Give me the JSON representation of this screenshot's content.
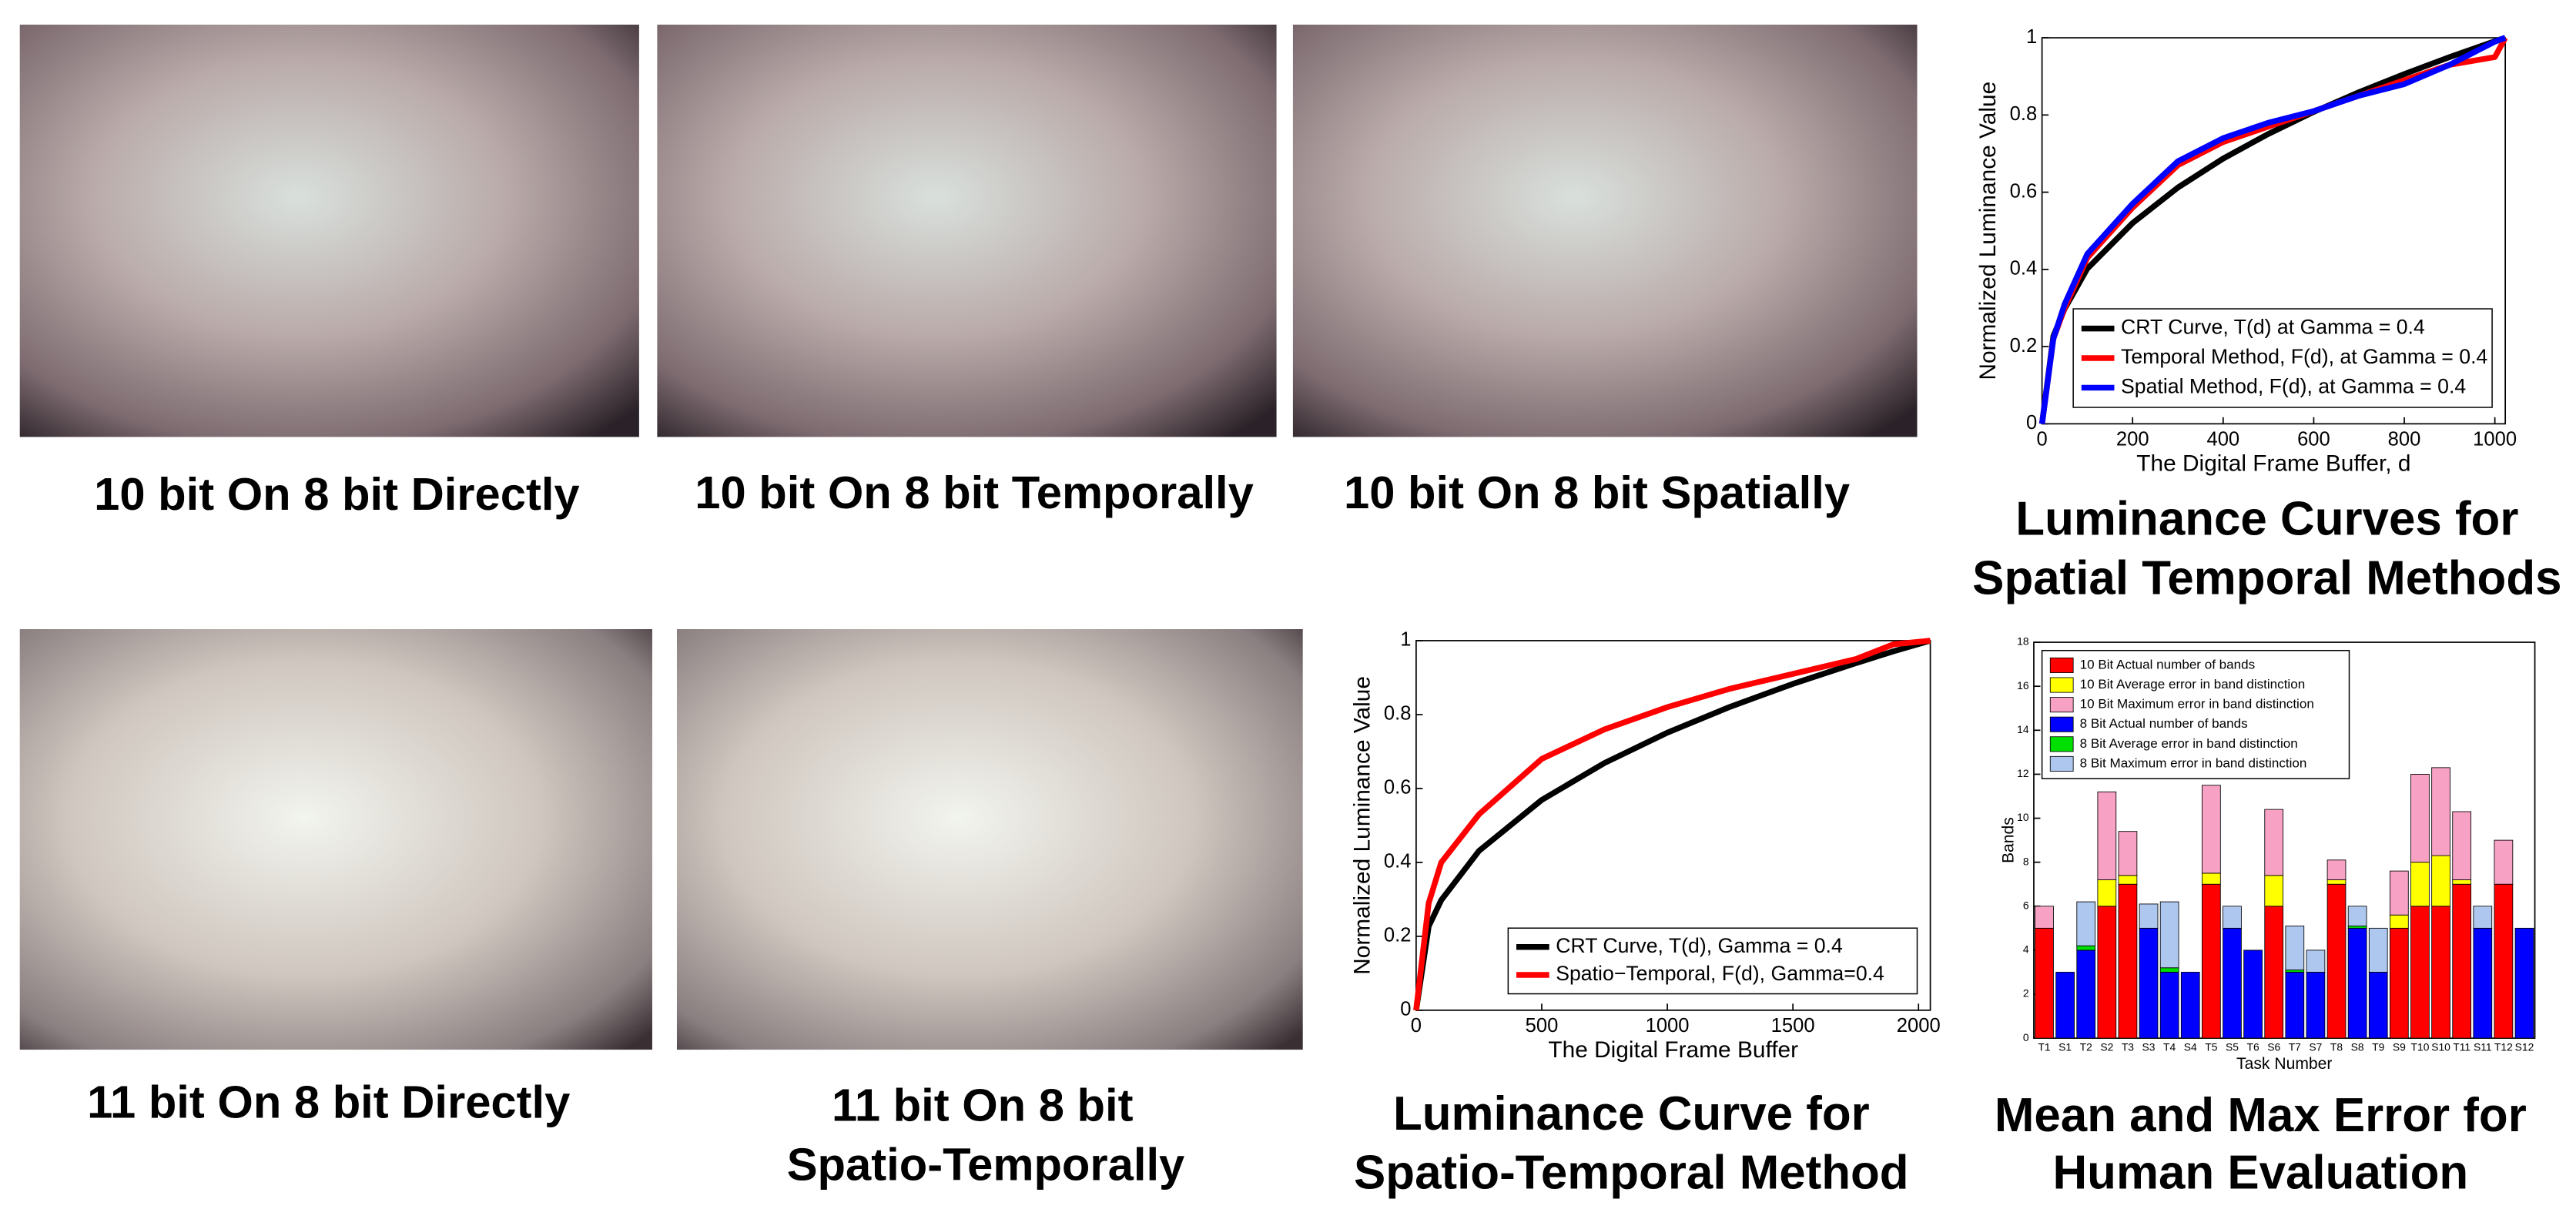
{
  "photos": [
    {
      "caption": "10 bit On 8 bit Directly"
    },
    {
      "caption": "10 bit On 8 bit Temporally"
    },
    {
      "caption": "10 bit On 8 bit Spatially"
    },
    {
      "caption": "11 bit On 8 bit Directly"
    },
    {
      "caption": [
        "11 bit On 8 bit",
        "Spatio-Temporally"
      ]
    }
  ],
  "chart_data": [
    {
      "type": "line",
      "title": [
        "Luminance Curves for",
        "Spatial Temporal Methods"
      ],
      "xlabel": "The Digital Frame Buffer, d",
      "ylabel": "Normalized Luminance Value",
      "x": [
        0,
        25,
        50,
        100,
        200,
        300,
        400,
        500,
        600,
        700,
        800,
        900,
        1000,
        1023
      ],
      "series": [
        {
          "name": "CRT Curve, T(d) at Gamma = 0.4",
          "color": "#000000",
          "values": [
            0,
            0.227,
            0.298,
            0.402,
            0.52,
            0.612,
            0.687,
            0.751,
            0.808,
            0.859,
            0.906,
            0.95,
            0.991,
            1
          ]
        },
        {
          "name": "Temporal Method, F(d), at Gamma = 0.4",
          "color": "#ff0000",
          "values": [
            0,
            0.22,
            0.3,
            0.43,
            0.56,
            0.67,
            0.73,
            0.77,
            0.81,
            0.85,
            0.89,
            0.93,
            0.95,
            1
          ]
        },
        {
          "name": "Spatial Method, F(d), at Gamma = 0.4",
          "color": "#0000ff",
          "values": [
            0,
            0.22,
            0.31,
            0.44,
            0.57,
            0.68,
            0.74,
            0.78,
            0.81,
            0.85,
            0.88,
            0.93,
            0.99,
            1
          ]
        }
      ],
      "xlim": [
        0,
        1023
      ],
      "ylim": [
        0,
        1
      ],
      "xticks": [
        0,
        200,
        400,
        600,
        800,
        1000
      ],
      "yticks": [
        0,
        0.2,
        0.4,
        0.6,
        0.8,
        1
      ],
      "legend": "lower right"
    },
    {
      "type": "line",
      "title": [
        "Luminance Curve for",
        "Spatio-Temporal Method"
      ],
      "xlabel": "The Digital Frame Buffer",
      "ylabel": "Normalized Luminance Value",
      "x": [
        0,
        50,
        100,
        250,
        500,
        750,
        1000,
        1250,
        1500,
        1750,
        1900,
        2047
      ],
      "series": [
        {
          "name": "CRT Curve, T(d), Gamma = 0.4",
          "color": "#000000",
          "values": [
            0,
            0.227,
            0.298,
            0.431,
            0.569,
            0.669,
            0.751,
            0.821,
            0.883,
            0.939,
            0.971,
            1
          ]
        },
        {
          "name": "Spatio−Temporal, F(d), Gamma=0.4",
          "color": "#ff0000",
          "values": [
            0,
            0.29,
            0.4,
            0.53,
            0.68,
            0.76,
            0.82,
            0.87,
            0.91,
            0.95,
            0.99,
            1
          ]
        }
      ],
      "xlim": [
        0,
        2047
      ],
      "ylim": [
        0,
        1
      ],
      "xticks": [
        0,
        500,
        1000,
        1500,
        2000
      ],
      "yticks": [
        0,
        0.2,
        0.4,
        0.6,
        0.8,
        1
      ],
      "legend": "lower right"
    },
    {
      "type": "bar",
      "stacked": true,
      "title": [
        "Mean and Max Error for",
        "Human Evaluation"
      ],
      "xlabel": "Task Number",
      "ylabel": "Bands",
      "categories": [
        "T1",
        "S1",
        "T2",
        "S2",
        "T3",
        "S3",
        "T4",
        "S4",
        "T5",
        "S5",
        "T6",
        "S6",
        "T7",
        "S7",
        "T8",
        "S8",
        "T9",
        "S9",
        "T10",
        "S10",
        "T11",
        "S11",
        "T12",
        "S12"
      ],
      "series": [
        {
          "name": "10 Bit Actual number of bands",
          "color": "#ff0000",
          "values": [
            5,
            0,
            0,
            6,
            7,
            0,
            0,
            0,
            7,
            0,
            0,
            6,
            0,
            0,
            7,
            0,
            0,
            5,
            6,
            6,
            7,
            0,
            7,
            0
          ]
        },
        {
          "name": "10 Bit Average error in band distinction",
          "color": "#ffff00",
          "values": [
            0,
            0,
            0,
            1.2,
            0.4,
            0,
            0,
            0,
            0.5,
            0,
            0,
            1.4,
            0,
            0,
            0.2,
            0,
            0,
            0.6,
            2,
            2.3,
            0.2,
            0,
            0,
            0
          ]
        },
        {
          "name": "10 Bit Maximum error in band distinction",
          "color": "#f7a1c4",
          "values": [
            1,
            0,
            0,
            4,
            2,
            0,
            0,
            0,
            4,
            0,
            0,
            3,
            0,
            0,
            0.9,
            0,
            0,
            2,
            4,
            4,
            3.1,
            0,
            2,
            0
          ]
        },
        {
          "name": "8 Bit Actual number of bands",
          "color": "#0000ff",
          "values": [
            0,
            3,
            4,
            0,
            0,
            5,
            3,
            3,
            0,
            5,
            4,
            0,
            3,
            3,
            0,
            5,
            3,
            0,
            0,
            0,
            0,
            5,
            0,
            5
          ]
        },
        {
          "name": "8 Bit Average error in band distinction",
          "color": "#00e000",
          "values": [
            0,
            0,
            0.2,
            0,
            0,
            0,
            0.2,
            0,
            0,
            0,
            0,
            0,
            0.1,
            0,
            0,
            0.1,
            0,
            0,
            0,
            0,
            0,
            0,
            0,
            0
          ]
        },
        {
          "name": "8 Bit Maximum error in band distinction",
          "color": "#aec7ef",
          "values": [
            0,
            0,
            2,
            0,
            0,
            1.1,
            3,
            0,
            0,
            1,
            0,
            0,
            2,
            1,
            0,
            0.9,
            2,
            0,
            0,
            0,
            0,
            1,
            0,
            0
          ]
        }
      ],
      "ylim": [
        0,
        18
      ],
      "yticks": [
        0,
        2,
        4,
        6,
        8,
        10,
        12,
        14,
        16,
        18
      ],
      "legend": "upper left"
    }
  ]
}
